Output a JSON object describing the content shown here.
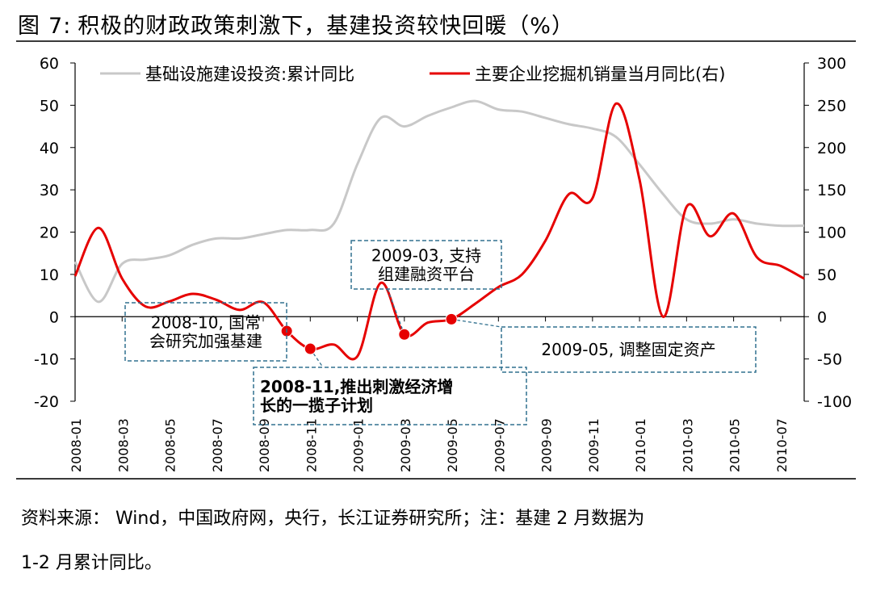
{
  "figure": {
    "label": "图",
    "number": "7",
    "separator": ":",
    "title": "积极的财政政策刺激下，基建投资较快回暖（%）"
  },
  "source_note": {
    "line1": "资料来源：  Wind，中国政府网，央行，长江证券研究所；注：基建 2 月数据为",
    "line2": "1-2 月累计同比。"
  },
  "colors": {
    "infra_series": "#c8c8c8",
    "excavator_series": "#e60000",
    "axis": "#000000",
    "callout_border": "#31708f"
  },
  "chart_data": {
    "type": "line",
    "xlabel": "",
    "ylabel": "",
    "ylim_left": [
      -20,
      60
    ],
    "ylim_right": [
      -100,
      300
    ],
    "yticks_left": [
      -20,
      -10,
      0,
      10,
      20,
      30,
      40,
      50,
      60
    ],
    "yticks_right": [
      -100,
      -50,
      0,
      50,
      100,
      150,
      200,
      250,
      300
    ],
    "x_tick_labels": [
      "2008-01",
      "2008-03",
      "2008-05",
      "2008-07",
      "2008-09",
      "2008-11",
      "2009-01",
      "2009-03",
      "2009-05",
      "2009-07",
      "2009-09",
      "2009-11",
      "2010-01",
      "2010-03",
      "2010-05",
      "2010-07"
    ],
    "grid": false,
    "legend_position": "top",
    "series": [
      {
        "name": "基础设施建设投资:累计同比",
        "axis": "left",
        "x": [
          "2008-01",
          "2008-02",
          "2008-03",
          "2008-04",
          "2008-05",
          "2008-06",
          "2008-07",
          "2008-08",
          "2008-09",
          "2008-10",
          "2008-11",
          "2008-12",
          "2009-01",
          "2009-02",
          "2009-03",
          "2009-04",
          "2009-05",
          "2009-06",
          "2009-07",
          "2009-08",
          "2009-09",
          "2009-10",
          "2009-11",
          "2009-12",
          "2010-01",
          "2010-02",
          "2010-03",
          "2010-04",
          "2010-05",
          "2010-06",
          "2010-07",
          "2010-08"
        ],
        "values": [
          13,
          3.5,
          12.5,
          13.5,
          14.5,
          17,
          18.5,
          18.5,
          19.5,
          20.5,
          20.5,
          22,
          36,
          47,
          45,
          47.5,
          49.5,
          51,
          49,
          48.5,
          47,
          45.5,
          44.5,
          42.5,
          36,
          29,
          23,
          22,
          23,
          22,
          21.5,
          21.5
        ]
      },
      {
        "name": "主要企业挖掘机销量当月同比(右)",
        "axis": "right",
        "x": [
          "2008-01",
          "2008-02",
          "2008-03",
          "2008-04",
          "2008-05",
          "2008-06",
          "2008-07",
          "2008-08",
          "2008-09",
          "2008-10",
          "2008-11",
          "2008-12",
          "2009-01",
          "2009-02",
          "2009-03",
          "2009-04",
          "2009-05",
          "2009-06",
          "2009-07",
          "2009-08",
          "2009-09",
          "2009-10",
          "2009-11",
          "2009-12",
          "2010-01",
          "2010-02",
          "2010-03",
          "2010-04",
          "2010-05",
          "2010-06",
          "2010-07",
          "2010-08"
        ],
        "values": [
          48,
          105,
          45,
          12,
          18,
          27,
          20,
          8,
          17,
          -17,
          -38,
          -33,
          -47,
          40,
          -21,
          -7,
          -3,
          15,
          35,
          50,
          90,
          145,
          140,
          252,
          162,
          0,
          130,
          95,
          122,
          70,
          60,
          45
        ]
      }
    ],
    "annotations": [
      {
        "date": "2008-10",
        "value": -17,
        "text_line1": "2008-10, 国常",
        "text_line2": "会研究加强基建",
        "bold": false
      },
      {
        "date": "2008-11",
        "value": -38,
        "text_line1": "2008-11,推出刺激经济增",
        "text_line2": "长的一揽子计划",
        "bold": true
      },
      {
        "date": "2009-03",
        "value": -21,
        "text_line1": "2009-03, 支持",
        "text_line2": "组建融资平台",
        "bold": false
      },
      {
        "date": "2009-05",
        "value": -3,
        "text_line1": "2009-05, 调整固定资产",
        "text_line2": "",
        "bold": false
      }
    ]
  }
}
